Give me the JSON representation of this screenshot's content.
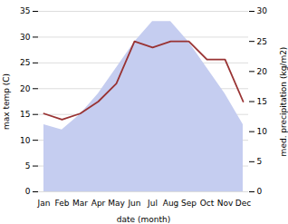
{
  "chart_data": {
    "type": "combo",
    "categories": [
      "Jan",
      "Feb",
      "Mar",
      "Apr",
      "May",
      "Jun",
      "Jul",
      "Aug",
      "Sep",
      "Oct",
      "Nov",
      "Dec"
    ],
    "xlabel": "date (month)",
    "ylabel": "max temp (C)",
    "y2label": "med. precipitation (kg/m2)",
    "series": [
      {
        "type": "area",
        "color": "#c5cdf0",
        "values": [
          13,
          12,
          15,
          19,
          24,
          29,
          33,
          33,
          29,
          24,
          19,
          13
        ]
      },
      {
        "type": "line",
        "color": "#993333",
        "axis": "y2",
        "values": [
          13,
          12,
          13,
          15,
          18,
          25,
          24,
          25,
          25,
          22,
          22,
          15
        ]
      }
    ],
    "ylim": [
      0,
      35
    ],
    "yticks": [
      0,
      5,
      10,
      15,
      20,
      25,
      30,
      35
    ],
    "y2lim": [
      0,
      30
    ],
    "y2ticks": [
      0,
      5,
      10,
      15,
      20,
      25,
      30
    ],
    "grid": true
  }
}
